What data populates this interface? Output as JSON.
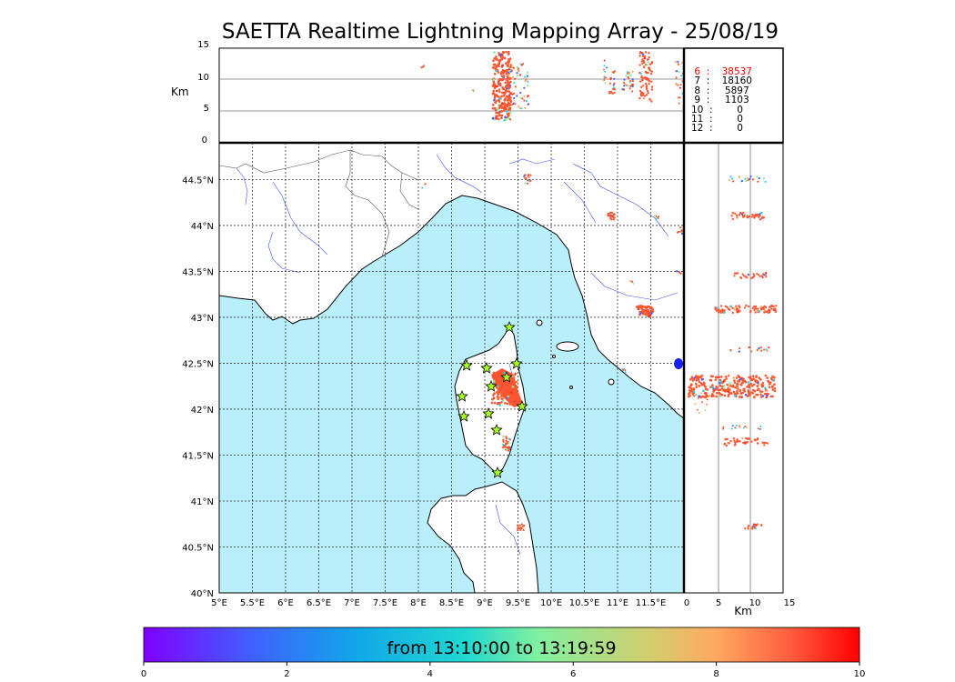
{
  "title": "SAETTA Realtime Lightning Mapping Array - 25/08/19",
  "top_panel": {
    "ylabel": "Km",
    "yticks": [
      "15",
      "10",
      "5",
      "0"
    ]
  },
  "side_panel": {
    "xlabel": "Km",
    "xticks": [
      "0",
      "5",
      "10",
      "15"
    ]
  },
  "map": {
    "lon_ticks": [
      "5°E",
      "5.5°E",
      "6°E",
      "6.5°E",
      "7°E",
      "7.5°E",
      "8°E",
      "8.5°E",
      "9°E",
      "9.5°E",
      "10°E",
      "10.5°E",
      "11°E",
      "11.5°E"
    ],
    "lat_ticks": [
      "44.5°N",
      "44°N",
      "43.5°N",
      "43°N",
      "42.5°N",
      "42°N",
      "41.5°N",
      "41°N",
      "40.5°N",
      "40°N"
    ],
    "sea_color": "#b9effb",
    "lightning_color": "#ff5530",
    "station_color": "#aaff22"
  },
  "legend": [
    {
      "label": " 6  :    38537",
      "color": "#ff0000"
    },
    {
      "label": " 7  :    18160",
      "color": "#000000"
    },
    {
      "label": " 8  :     5897",
      "color": "#000000"
    },
    {
      "label": " 9  :     1103",
      "color": "#000000"
    },
    {
      "label": "10  :        0",
      "color": "#000000"
    },
    {
      "label": "11  :        0",
      "color": "#000000"
    },
    {
      "label": "12  :        0",
      "color": "#000000"
    }
  ],
  "colorbar": {
    "label": "from 13:10:00 to 13:19:59",
    "ticks": [
      "0",
      "2",
      "4",
      "6",
      "8",
      "10"
    ]
  }
}
